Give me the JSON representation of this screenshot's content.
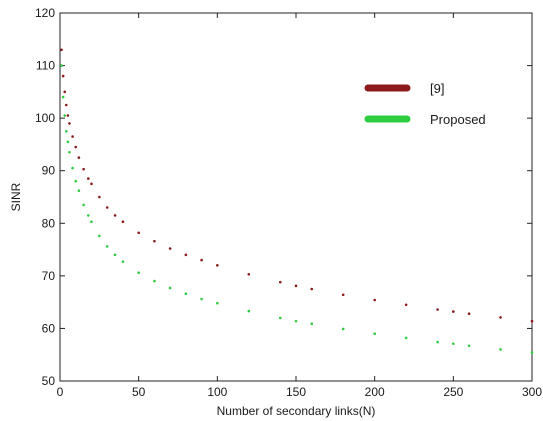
{
  "chart_data": {
    "type": "scatter",
    "title": "",
    "xlabel": "Number of secondary links(N)",
    "ylabel": "SINR",
    "xlim": [
      0,
      300
    ],
    "ylim": [
      50,
      120
    ],
    "xticks": [
      0,
      50,
      100,
      150,
      200,
      250,
      300
    ],
    "yticks": [
      50,
      60,
      70,
      80,
      90,
      100,
      110,
      120
    ],
    "grid": false,
    "legend_position": "top-right",
    "series": [
      {
        "name": "[9]",
        "color": "#8b1a1a",
        "x": [
          1,
          2,
          3,
          4,
          5,
          6,
          8,
          10,
          12,
          15,
          18,
          20,
          25,
          30,
          35,
          40,
          50,
          60,
          70,
          80,
          90,
          100,
          120,
          140,
          150,
          160,
          180,
          200,
          220,
          240,
          250,
          260,
          280,
          300
        ],
        "values": [
          113,
          108,
          105,
          102.5,
          100.5,
          99,
          96.5,
          94.5,
          92.5,
          90.3,
          88.5,
          87.5,
          85,
          83,
          81.5,
          80.3,
          78.2,
          76.6,
          75.2,
          74,
          73,
          72,
          70.3,
          68.8,
          68.1,
          67.5,
          66.4,
          65.4,
          64.5,
          63.6,
          63.2,
          62.8,
          62.1,
          61.4
        ]
      },
      {
        "name": "Proposed",
        "color": "#2ecc40",
        "x": [
          1,
          2,
          3,
          4,
          5,
          6,
          8,
          10,
          12,
          15,
          18,
          20,
          25,
          30,
          35,
          40,
          50,
          60,
          70,
          80,
          90,
          100,
          120,
          140,
          150,
          160,
          180,
          200,
          220,
          240,
          250,
          260,
          280,
          300
        ],
        "values": [
          110,
          104,
          100.5,
          97.5,
          95.5,
          93.5,
          90.5,
          88,
          86.2,
          83.5,
          81.5,
          80.3,
          77.6,
          75.6,
          74,
          72.7,
          70.6,
          69,
          67.7,
          66.6,
          65.6,
          64.8,
          63.3,
          62,
          61.4,
          60.9,
          59.9,
          59,
          58.2,
          57.4,
          57.1,
          56.7,
          56,
          55.4
        ]
      }
    ]
  }
}
